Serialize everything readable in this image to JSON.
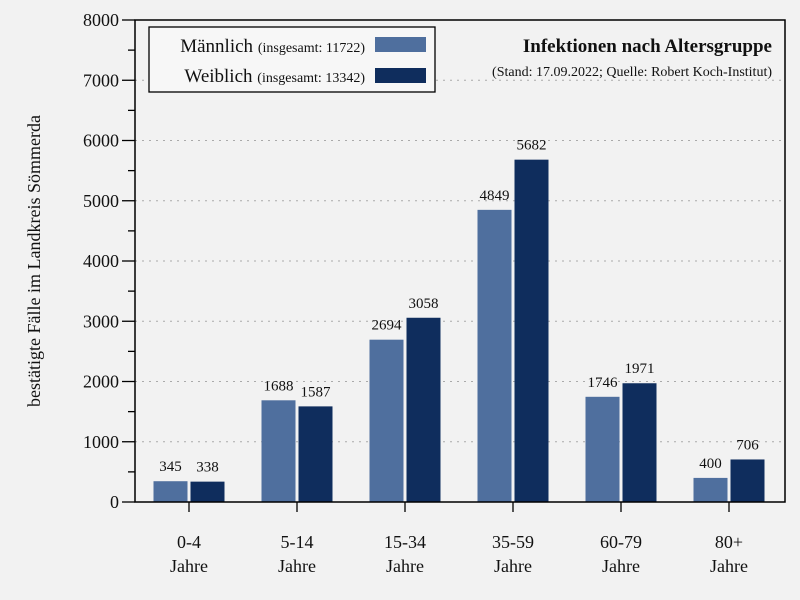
{
  "chart_data": {
    "type": "bar",
    "title": "Infektionen nach Altersgruppe",
    "subtitle": "(Stand: 17.09.2022; Quelle: Robert Koch-Institut)",
    "xlabel": "",
    "ylabel": "bestätigte Fälle im Landkreis Sömmerda",
    "ylim": [
      0,
      8000
    ],
    "yticks": [
      0,
      1000,
      2000,
      3000,
      4000,
      5000,
      6000,
      7000,
      8000
    ],
    "grid": true,
    "legend_position": "top-left",
    "categories": [
      [
        "0-4",
        "Jahre"
      ],
      [
        "5-14",
        "Jahre"
      ],
      [
        "15-34",
        "Jahre"
      ],
      [
        "35-59",
        "Jahre"
      ],
      [
        "60-79",
        "Jahre"
      ],
      [
        "80+",
        "Jahre"
      ]
    ],
    "series": [
      {
        "name": "Männlich",
        "total_label": "(insgesamt: 11722)",
        "color": "#4f6f9e",
        "values": [
          345,
          1688,
          2694,
          4849,
          1746,
          400
        ]
      },
      {
        "name": "Weiblich",
        "total_label": "(insgesamt: 13342)",
        "color": "#0f2d5d",
        "values": [
          338,
          1587,
          3058,
          5682,
          1971,
          706
        ]
      }
    ]
  }
}
